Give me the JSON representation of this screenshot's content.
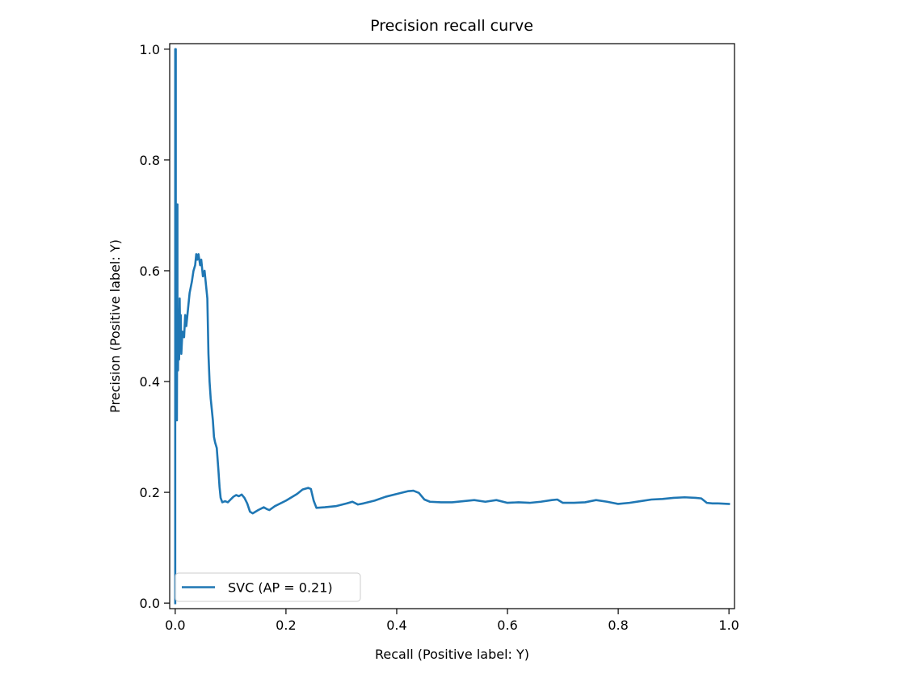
{
  "chart_data": {
    "type": "line",
    "title": "Precision recall curve",
    "xlabel": "Recall (Positive label: Y)",
    "ylabel": "Precision (Positive label: Y)",
    "xlim": [
      -0.01,
      1.01
    ],
    "ylim": [
      -0.01,
      1.01
    ],
    "xticks": [
      "0.0",
      "0.2",
      "0.4",
      "0.6",
      "0.8",
      "1.0"
    ],
    "yticks": [
      "0.0",
      "0.2",
      "0.4",
      "0.6",
      "0.8",
      "1.0"
    ],
    "grid": false,
    "legend_position": "lower-left",
    "series": [
      {
        "name": "SVC (AP = 0.21)",
        "color": "#1f77b4",
        "points": [
          [
            0.0,
            0.0
          ],
          [
            0.0,
            1.0
          ],
          [
            0.001,
            1.0
          ],
          [
            0.001,
            0.5
          ],
          [
            0.002,
            0.71
          ],
          [
            0.002,
            0.36
          ],
          [
            0.003,
            0.6
          ],
          [
            0.003,
            0.33
          ],
          [
            0.004,
            0.72
          ],
          [
            0.004,
            0.45
          ],
          [
            0.005,
            0.42
          ],
          [
            0.006,
            0.53
          ],
          [
            0.007,
            0.44
          ],
          [
            0.008,
            0.55
          ],
          [
            0.009,
            0.47
          ],
          [
            0.01,
            0.52
          ],
          [
            0.011,
            0.45
          ],
          [
            0.013,
            0.49
          ],
          [
            0.016,
            0.48
          ],
          [
            0.018,
            0.52
          ],
          [
            0.02,
            0.5
          ],
          [
            0.023,
            0.53
          ],
          [
            0.026,
            0.56
          ],
          [
            0.03,
            0.58
          ],
          [
            0.033,
            0.6
          ],
          [
            0.036,
            0.61
          ],
          [
            0.038,
            0.63
          ],
          [
            0.04,
            0.62
          ],
          [
            0.042,
            0.63
          ],
          [
            0.045,
            0.61
          ],
          [
            0.047,
            0.62
          ],
          [
            0.05,
            0.59
          ],
          [
            0.053,
            0.6
          ],
          [
            0.056,
            0.57
          ],
          [
            0.058,
            0.55
          ],
          [
            0.06,
            0.45
          ],
          [
            0.062,
            0.4
          ],
          [
            0.064,
            0.37
          ],
          [
            0.066,
            0.35
          ],
          [
            0.068,
            0.33
          ],
          [
            0.07,
            0.3
          ],
          [
            0.072,
            0.29
          ],
          [
            0.075,
            0.28
          ],
          [
            0.078,
            0.24
          ],
          [
            0.08,
            0.21
          ],
          [
            0.082,
            0.19
          ],
          [
            0.085,
            0.182
          ],
          [
            0.09,
            0.184
          ],
          [
            0.095,
            0.182
          ],
          [
            0.1,
            0.187
          ],
          [
            0.105,
            0.192
          ],
          [
            0.11,
            0.195
          ],
          [
            0.115,
            0.193
          ],
          [
            0.12,
            0.196
          ],
          [
            0.125,
            0.19
          ],
          [
            0.13,
            0.18
          ],
          [
            0.135,
            0.165
          ],
          [
            0.14,
            0.162
          ],
          [
            0.15,
            0.168
          ],
          [
            0.16,
            0.173
          ],
          [
            0.165,
            0.17
          ],
          [
            0.17,
            0.168
          ],
          [
            0.18,
            0.175
          ],
          [
            0.2,
            0.185
          ],
          [
            0.22,
            0.197
          ],
          [
            0.23,
            0.205
          ],
          [
            0.24,
            0.208
          ],
          [
            0.245,
            0.206
          ],
          [
            0.25,
            0.185
          ],
          [
            0.255,
            0.172
          ],
          [
            0.27,
            0.173
          ],
          [
            0.29,
            0.175
          ],
          [
            0.31,
            0.18
          ],
          [
            0.32,
            0.183
          ],
          [
            0.33,
            0.178
          ],
          [
            0.34,
            0.18
          ],
          [
            0.36,
            0.185
          ],
          [
            0.38,
            0.192
          ],
          [
            0.4,
            0.197
          ],
          [
            0.42,
            0.202
          ],
          [
            0.43,
            0.203
          ],
          [
            0.44,
            0.199
          ],
          [
            0.45,
            0.187
          ],
          [
            0.46,
            0.183
          ],
          [
            0.48,
            0.182
          ],
          [
            0.5,
            0.182
          ],
          [
            0.52,
            0.184
          ],
          [
            0.54,
            0.186
          ],
          [
            0.56,
            0.183
          ],
          [
            0.58,
            0.186
          ],
          [
            0.6,
            0.181
          ],
          [
            0.62,
            0.182
          ],
          [
            0.64,
            0.181
          ],
          [
            0.66,
            0.183
          ],
          [
            0.68,
            0.186
          ],
          [
            0.69,
            0.187
          ],
          [
            0.7,
            0.181
          ],
          [
            0.72,
            0.181
          ],
          [
            0.74,
            0.182
          ],
          [
            0.76,
            0.186
          ],
          [
            0.78,
            0.183
          ],
          [
            0.8,
            0.179
          ],
          [
            0.82,
            0.181
          ],
          [
            0.84,
            0.184
          ],
          [
            0.86,
            0.187
          ],
          [
            0.88,
            0.188
          ],
          [
            0.9,
            0.19
          ],
          [
            0.92,
            0.191
          ],
          [
            0.94,
            0.19
          ],
          [
            0.95,
            0.189
          ],
          [
            0.96,
            0.181
          ],
          [
            0.97,
            0.18
          ],
          [
            0.98,
            0.18
          ],
          [
            1.0,
            0.179
          ]
        ]
      }
    ]
  }
}
